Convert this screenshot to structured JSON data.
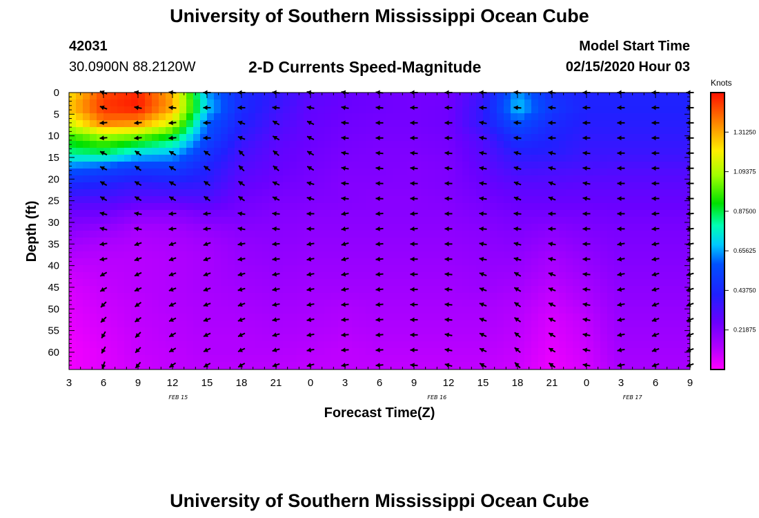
{
  "header": {
    "title": "University of Southern Mississippi Ocean Cube",
    "station_id": "42031",
    "location": "30.0900N 88.2120W",
    "subtitle": "2-D Currents Speed-Magnitude",
    "model_label": "Model Start Time",
    "model_time": "02/15/2020 Hour 03"
  },
  "footer": {
    "title": "University of Southern Mississippi Ocean Cube"
  },
  "chart_data": {
    "type": "heatmap",
    "title": "2-D Currents Speed-Magnitude",
    "xlabel": "Forecast Time(Z)",
    "ylabel": "Depth (ft)",
    "colorbar_label": "Knots",
    "colorbar_ticks": [
      "0.21875",
      "0.43750",
      "0.65625",
      "0.87500",
      "1.09375",
      "1.31250"
    ],
    "colorbar_values": [
      0.21875,
      0.4375,
      0.65625,
      0.875,
      1.09375,
      1.3125
    ],
    "colorbar_range": [
      0,
      1.53125
    ],
    "x_tick_labels": [
      "3",
      "6",
      "9",
      "12",
      "15",
      "18",
      "21",
      "0",
      "3",
      "6",
      "9",
      "12",
      "15",
      "18",
      "21",
      "0",
      "3",
      "6",
      "9"
    ],
    "x_hours": [
      0,
      3,
      6,
      9,
      12,
      15,
      18,
      21,
      24,
      27,
      30,
      33,
      36,
      39,
      42,
      45,
      48,
      51,
      54
    ],
    "date_labels": [
      {
        "label": "FEB 15",
        "hour": 9.5
      },
      {
        "label": "FEB 16",
        "hour": 32
      },
      {
        "label": "FEB 17",
        "hour": 49
      }
    ],
    "y_tick_labels": [
      "0",
      "5",
      "10",
      "15",
      "20",
      "25",
      "30",
      "35",
      "40",
      "45",
      "50",
      "55",
      "60"
    ],
    "y_depths": [
      0,
      5,
      10,
      15,
      20,
      25,
      30,
      35,
      40,
      45,
      50,
      55,
      60
    ],
    "ylim": [
      0,
      64
    ],
    "xlim": [
      0,
      54
    ],
    "arrow_hours": [
      3,
      6,
      9,
      12,
      15,
      18,
      21,
      24,
      27,
      30,
      33,
      36,
      39,
      42,
      45,
      48,
      51,
      54
    ],
    "arrow_depths": [
      0,
      3.5,
      7,
      10.5,
      14,
      17.5,
      21,
      24.5,
      28,
      31.5,
      35,
      38.5,
      42,
      45.5,
      49,
      52.5,
      56,
      59.5,
      63
    ],
    "speed_grid_hours": [
      0,
      3,
      6,
      9,
      12,
      15,
      18,
      21,
      24,
      27,
      30,
      33,
      36,
      39,
      42,
      45,
      48,
      51,
      54
    ],
    "speed_grid_depths": [
      0,
      3.5,
      7,
      10.5,
      14,
      17.5,
      21,
      24.5,
      28,
      31.5,
      35,
      38.5,
      42,
      45.5,
      49,
      52.5,
      56,
      59.5,
      63
    ],
    "speed_knots": [
      [
        1.22,
        1.45,
        1.5,
        1.3,
        0.65,
        0.45,
        0.38,
        0.3,
        0.27,
        0.25,
        0.24,
        0.24,
        0.35,
        0.65,
        0.45,
        0.42,
        0.42,
        0.42,
        0.42
      ],
      [
        1.28,
        1.48,
        1.52,
        1.32,
        0.7,
        0.45,
        0.36,
        0.28,
        0.26,
        0.25,
        0.24,
        0.25,
        0.38,
        0.7,
        0.5,
        0.42,
        0.42,
        0.42,
        0.42
      ],
      [
        1.15,
        1.38,
        1.35,
        1.15,
        0.6,
        0.42,
        0.33,
        0.27,
        0.25,
        0.24,
        0.24,
        0.25,
        0.38,
        0.58,
        0.45,
        0.4,
        0.4,
        0.4,
        0.4
      ],
      [
        0.95,
        1.05,
        1.0,
        0.88,
        0.55,
        0.38,
        0.3,
        0.26,
        0.24,
        0.23,
        0.23,
        0.24,
        0.32,
        0.48,
        0.42,
        0.38,
        0.38,
        0.38,
        0.38
      ],
      [
        0.82,
        0.85,
        0.72,
        0.68,
        0.48,
        0.34,
        0.28,
        0.25,
        0.23,
        0.22,
        0.22,
        0.23,
        0.3,
        0.4,
        0.4,
        0.36,
        0.36,
        0.36,
        0.36
      ],
      [
        0.6,
        0.55,
        0.5,
        0.52,
        0.42,
        0.31,
        0.27,
        0.24,
        0.22,
        0.22,
        0.21,
        0.22,
        0.28,
        0.35,
        0.34,
        0.33,
        0.32,
        0.32,
        0.32
      ],
      [
        0.45,
        0.42,
        0.38,
        0.4,
        0.38,
        0.28,
        0.25,
        0.23,
        0.21,
        0.21,
        0.21,
        0.22,
        0.26,
        0.3,
        0.3,
        0.29,
        0.29,
        0.29,
        0.29
      ],
      [
        0.33,
        0.33,
        0.3,
        0.3,
        0.32,
        0.25,
        0.23,
        0.22,
        0.21,
        0.2,
        0.2,
        0.21,
        0.24,
        0.27,
        0.27,
        0.27,
        0.27,
        0.27,
        0.27
      ],
      [
        0.25,
        0.25,
        0.2,
        0.2,
        0.24,
        0.23,
        0.21,
        0.2,
        0.2,
        0.2,
        0.2,
        0.2,
        0.22,
        0.24,
        0.24,
        0.24,
        0.25,
        0.25,
        0.25
      ],
      [
        0.2,
        0.18,
        0.14,
        0.15,
        0.18,
        0.2,
        0.2,
        0.19,
        0.19,
        0.19,
        0.19,
        0.19,
        0.2,
        0.22,
        0.2,
        0.22,
        0.23,
        0.23,
        0.23
      ],
      [
        0.15,
        0.13,
        0.12,
        0.13,
        0.15,
        0.18,
        0.19,
        0.18,
        0.18,
        0.18,
        0.18,
        0.18,
        0.19,
        0.2,
        0.17,
        0.2,
        0.22,
        0.22,
        0.22
      ],
      [
        0.11,
        0.11,
        0.11,
        0.12,
        0.14,
        0.17,
        0.18,
        0.17,
        0.17,
        0.17,
        0.17,
        0.17,
        0.18,
        0.18,
        0.14,
        0.18,
        0.21,
        0.21,
        0.21
      ],
      [
        0.08,
        0.1,
        0.11,
        0.12,
        0.14,
        0.16,
        0.17,
        0.16,
        0.16,
        0.16,
        0.16,
        0.16,
        0.17,
        0.16,
        0.12,
        0.16,
        0.2,
        0.2,
        0.2
      ],
      [
        0.06,
        0.09,
        0.11,
        0.12,
        0.14,
        0.15,
        0.16,
        0.15,
        0.15,
        0.15,
        0.15,
        0.15,
        0.16,
        0.14,
        0.1,
        0.14,
        0.19,
        0.19,
        0.19
      ],
      [
        0.05,
        0.08,
        0.1,
        0.12,
        0.13,
        0.14,
        0.15,
        0.14,
        0.13,
        0.14,
        0.14,
        0.14,
        0.14,
        0.12,
        0.08,
        0.12,
        0.18,
        0.18,
        0.18
      ],
      [
        0.04,
        0.07,
        0.1,
        0.11,
        0.13,
        0.13,
        0.14,
        0.13,
        0.12,
        0.13,
        0.13,
        0.13,
        0.13,
        0.11,
        0.06,
        0.1,
        0.17,
        0.17,
        0.17
      ],
      [
        0.03,
        0.06,
        0.09,
        0.11,
        0.12,
        0.12,
        0.13,
        0.12,
        0.11,
        0.12,
        0.12,
        0.12,
        0.12,
        0.1,
        0.05,
        0.09,
        0.16,
        0.16,
        0.16
      ],
      [
        0.02,
        0.05,
        0.09,
        0.1,
        0.12,
        0.12,
        0.12,
        0.11,
        0.1,
        0.11,
        0.11,
        0.11,
        0.11,
        0.09,
        0.04,
        0.08,
        0.15,
        0.15,
        0.15
      ],
      [
        0.02,
        0.05,
        0.08,
        0.1,
        0.11,
        0.11,
        0.11,
        0.1,
        0.1,
        0.1,
        0.1,
        0.1,
        0.1,
        0.08,
        0.03,
        0.07,
        0.14,
        0.14,
        0.14
      ]
    ],
    "arrow_dir_deg": [
      [
        160,
        170,
        175,
        180,
        180,
        175,
        170,
        170,
        175,
        180,
        180,
        178,
        175,
        175,
        180,
        180,
        180,
        180
      ],
      [
        185,
        185,
        185,
        180,
        160,
        150,
        155,
        175,
        180,
        180,
        180,
        170,
        175,
        180,
        180,
        180,
        180,
        180
      ],
      [
        155,
        145,
        150,
        145,
        135,
        140,
        150,
        170,
        175,
        175,
        175,
        170,
        165,
        168,
        175,
        180,
        180,
        180
      ],
      [
        150,
        150,
        150,
        145,
        145,
        155,
        165,
        175,
        178,
        178,
        178,
        172,
        160,
        160,
        170,
        180,
        180,
        180
      ],
      [
        165,
        170,
        185,
        185,
        170,
        175,
        180,
        190,
        185,
        185,
        180,
        175,
        175,
        180,
        180,
        180,
        185,
        185
      ],
      [
        190,
        200,
        200,
        200,
        190,
        185,
        190,
        195,
        185,
        180,
        180,
        170,
        165,
        170,
        180,
        190,
        190,
        190
      ],
      [
        210,
        205,
        200,
        200,
        195,
        190,
        190,
        190,
        185,
        180,
        175,
        160,
        150,
        160,
        175,
        190,
        195,
        195
      ],
      [
        225,
        215,
        205,
        200,
        200,
        190,
        190,
        185,
        185,
        180,
        175,
        160,
        145,
        155,
        170,
        190,
        200,
        200
      ],
      [
        240,
        225,
        210,
        205,
        205,
        195,
        190,
        185,
        185,
        180,
        170,
        155,
        140,
        150,
        170,
        190,
        200,
        200
      ],
      [
        250,
        230,
        215,
        210,
        210,
        200,
        195,
        190,
        185,
        175,
        165,
        150,
        135,
        145,
        170,
        190,
        200,
        200
      ]
    ]
  }
}
